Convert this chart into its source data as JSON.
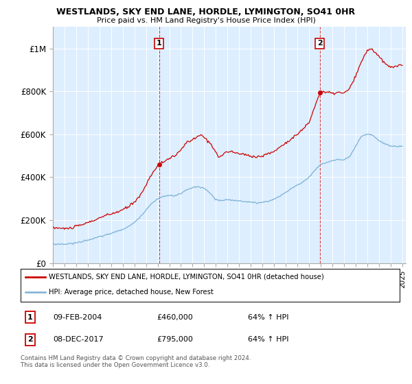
{
  "title": "WESTLANDS, SKY END LANE, HORDLE, LYMINGTON, SO41 0HR",
  "subtitle": "Price paid vs. HM Land Registry's House Price Index (HPI)",
  "legend_line1": "WESTLANDS, SKY END LANE, HORDLE, LYMINGTON, SO41 0HR (detached house)",
  "legend_line2": "HPI: Average price, detached house, New Forest",
  "sale1_label": "1",
  "sale1_date": "09-FEB-2004",
  "sale1_price": "£460,000",
  "sale1_hpi": "64% ↑ HPI",
  "sale2_label": "2",
  "sale2_date": "08-DEC-2017",
  "sale2_price": "£795,000",
  "sale2_hpi": "64% ↑ HPI",
  "footer": "Contains HM Land Registry data © Crown copyright and database right 2024.\nThis data is licensed under the Open Government Licence v3.0.",
  "red_color": "#cc0000",
  "blue_color": "#7ab0d4",
  "bg_color": "#ddeeff",
  "ylim": [
    0,
    1100000
  ],
  "yticks": [
    0,
    200000,
    400000,
    600000,
    800000,
    1000000
  ],
  "ytick_labels": [
    "£0",
    "£200K",
    "£400K",
    "£600K",
    "£800K",
    "£1M"
  ],
  "sale1_year": 2004.12,
  "sale1_value": 460000,
  "sale2_year": 2017.92,
  "sale2_value": 795000,
  "xmin": 1995,
  "xmax": 2025.3
}
